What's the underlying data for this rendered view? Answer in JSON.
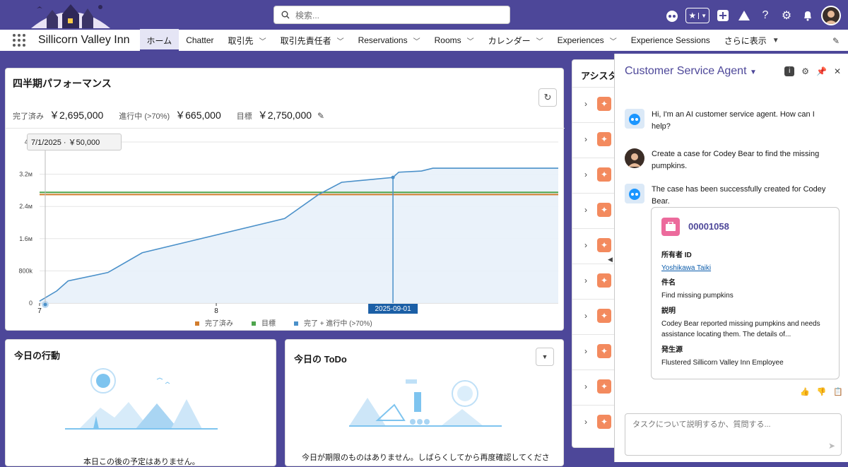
{
  "search": {
    "placeholder": "検索..."
  },
  "nav": {
    "app_name": "Sillicorn Valley Inn",
    "items": [
      {
        "label": "ホーム",
        "active": true,
        "dropdown": false
      },
      {
        "label": "Chatter",
        "dropdown": false
      },
      {
        "label": "取引先",
        "dropdown": true
      },
      {
        "label": "取引先責任者",
        "dropdown": true
      },
      {
        "label": "Reservations",
        "dropdown": true
      },
      {
        "label": "Rooms",
        "dropdown": true
      },
      {
        "label": "カレンダー",
        "dropdown": true
      },
      {
        "label": "Experiences",
        "dropdown": true
      },
      {
        "label": "Experience Sessions",
        "dropdown": true
      },
      {
        "label": "さらに表示",
        "dropdown": true
      }
    ]
  },
  "perf": {
    "title": "四半期パフォーマンス",
    "closed_label": "完了済み",
    "closed_value": "￥2,695,000",
    "open_label": "進行中 (>70%)",
    "open_value": "￥665,000",
    "goal_label": "目標",
    "goal_value": "￥2,750,000"
  },
  "chart_data": {
    "type": "area",
    "title": "四半期パフォーマンス",
    "x_range": [
      "2025-07-01",
      "2025-09-30"
    ],
    "x_ticks": [
      "7",
      "8"
    ],
    "ylim": [
      0,
      4000000
    ],
    "y_ticks": [
      "0",
      "800k",
      "1.6м",
      "2.4м",
      "3.2м",
      "4м"
    ],
    "series": [
      {
        "name": "完了 + 進行中 (>70%)",
        "color": "#4a90c9",
        "points": [
          [
            "2025-07-01",
            50000
          ],
          [
            "2025-07-04",
            300000
          ],
          [
            "2025-07-06",
            550000
          ],
          [
            "2025-07-13",
            760000
          ],
          [
            "2025-07-19",
            1250000
          ],
          [
            "2025-08-13",
            2100000
          ],
          [
            "2025-08-15",
            2300000
          ],
          [
            "2025-08-19",
            2700000
          ],
          [
            "2025-08-23",
            3000000
          ],
          [
            "2025-09-01",
            3120000
          ],
          [
            "2025-09-02",
            3250000
          ],
          [
            "2025-09-06",
            3280000
          ],
          [
            "2025-09-08",
            3350000
          ],
          [
            "2025-09-30",
            3350000
          ]
        ]
      },
      {
        "name": "完了済み",
        "color": "#d27d2d",
        "constant": 2695000
      },
      {
        "name": "目標",
        "color": "#4ea54d",
        "constant": 2750000
      }
    ],
    "tooltip": "7/1/2025 · ￥50,000",
    "highlight_label": "2025-09-01",
    "legend": [
      "完了済み",
      "目標",
      "完了 + 進行中 (>70%)"
    ],
    "legend_position": "bottom",
    "grid": true
  },
  "today": {
    "title": "今日の行動",
    "empty": "本日この後の予定はありません。"
  },
  "todo": {
    "title": "今日の ToDo",
    "empty": "今日が期限のものはありません。しばらくしてから再度確認してくださ"
  },
  "assist": {
    "title": "アシスタ"
  },
  "agent": {
    "title": "Customer Service Agent",
    "msg1": "Hi, I'm an AI customer service agent. How can I help?",
    "msg2": "Create a case for Codey Bear to find the missing pumpkins.",
    "msg3": "The case has been successfully created for Codey Bear.",
    "case": {
      "number": "00001058",
      "owner_label": "所有者 ID",
      "owner": "Yoshikawa Taiki",
      "subject_label": "件名",
      "subject": "Find missing pumpkins",
      "desc_label": "説明",
      "desc": "Codey Bear reported missing pumpkins and needs assistance locating them. The details of...",
      "origin_label": "発生源",
      "origin": "Flustered Sillicorn Valley Inn Employee"
    },
    "input_placeholder": "タスクについて説明するか、質問する..."
  }
}
